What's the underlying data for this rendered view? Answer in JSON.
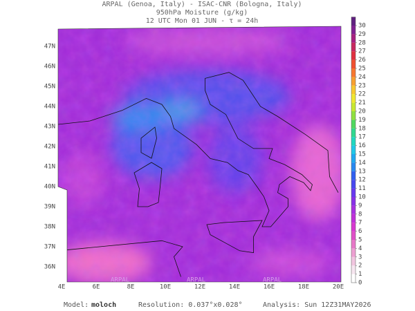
{
  "header": {
    "lines": [
      "ARPAL (Genoa, Italy)  -  ISAC-CNR (Bologna, Italy)",
      "950hPa Moisture (g/kg)",
      "12 UTC Mon 01 JUN  -  τ = 24h"
    ]
  },
  "map": {
    "lat_labels": [
      "47N",
      "46N",
      "45N",
      "44N",
      "43N",
      "42N",
      "41N",
      "40N",
      "39N",
      "38N",
      "37N",
      "36N"
    ],
    "lon_labels": [
      "4E",
      "6E",
      "8E",
      "10E",
      "12E",
      "14E",
      "16E",
      "18E",
      "20E"
    ],
    "watermark": "ARPAL"
  },
  "colorbar": {
    "ticks": [
      0,
      1,
      2,
      3,
      4,
      5,
      6,
      7,
      8,
      9,
      10,
      11,
      12,
      13,
      14,
      15,
      16,
      17,
      18,
      19,
      20,
      21,
      22,
      23,
      24,
      25,
      26,
      27,
      28,
      29,
      30
    ],
    "colors": [
      "#ffffff",
      "#f6e6f0",
      "#f2c6e0",
      "#eea0d2",
      "#e878c8",
      "#e050c8",
      "#d838d0",
      "#c030d8",
      "#a830e0",
      "#8830e8",
      "#6838f0",
      "#4848f0",
      "#3060f0",
      "#2888f0",
      "#20a8f0",
      "#20c8e8",
      "#20d8c0",
      "#30d890",
      "#50d860",
      "#90e040",
      "#c8e830",
      "#f0e830",
      "#f8c830",
      "#f8a030",
      "#f87830",
      "#f05030",
      "#e03040",
      "#c82860",
      "#a82080",
      "#802090",
      "#602080"
    ]
  },
  "footer": {
    "model_label": "Model:",
    "model": "moloch",
    "resolution": "Resolution: 0.037°x0.028°",
    "analysis": "Analysis: Sun 12Z31MAY2026"
  }
}
